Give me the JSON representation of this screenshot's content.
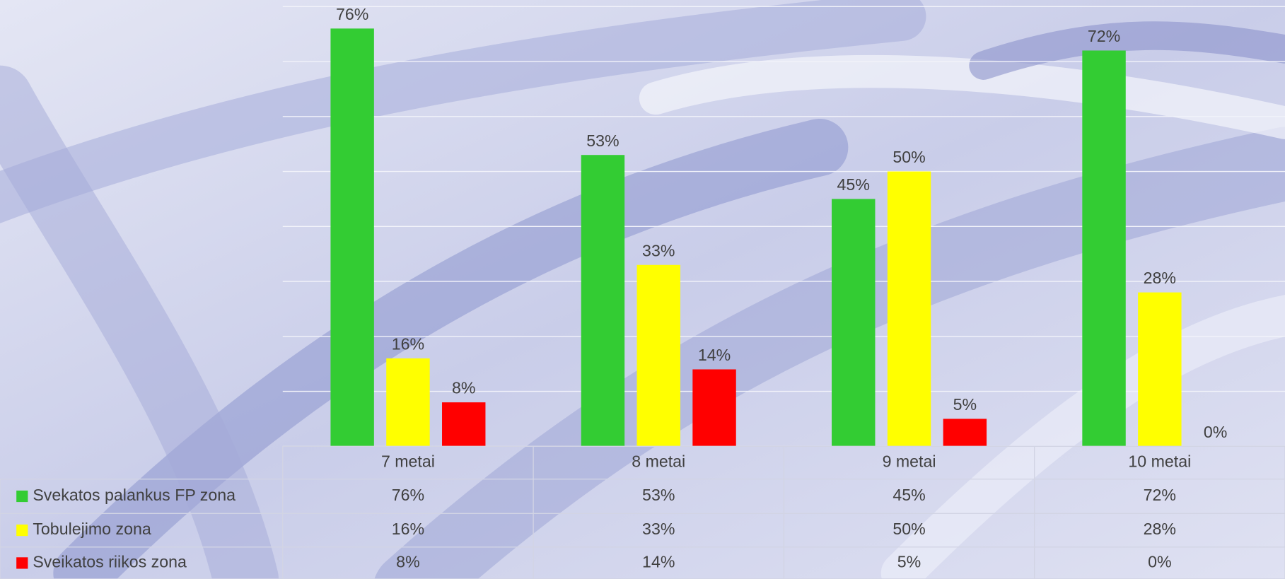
{
  "chart_data": {
    "type": "bar",
    "categories": [
      "7 metai",
      "8 metai",
      "9 metai",
      "10 metai"
    ],
    "series": [
      {
        "name": "Svekatos palankus FP zona",
        "color": "#33cc33",
        "values": [
          76,
          53,
          45,
          72
        ],
        "value_labels": [
          "76%",
          "53%",
          "45%",
          "72%"
        ]
      },
      {
        "name": "Tobulejimo zona",
        "color": "#ffff00",
        "values": [
          16,
          33,
          50,
          28
        ],
        "value_labels": [
          "16%",
          "33%",
          "50%",
          "28%"
        ]
      },
      {
        "name": "Sveikatos riikos zona",
        "color": "#ff0000",
        "values": [
          8,
          14,
          5,
          0
        ],
        "value_labels": [
          "8%",
          "14%",
          "5%",
          "0%"
        ]
      }
    ],
    "ylim": [
      0,
      80
    ],
    "yticks": [
      0,
      10,
      20,
      30,
      40,
      50,
      60,
      70,
      80
    ],
    "grid": true
  }
}
